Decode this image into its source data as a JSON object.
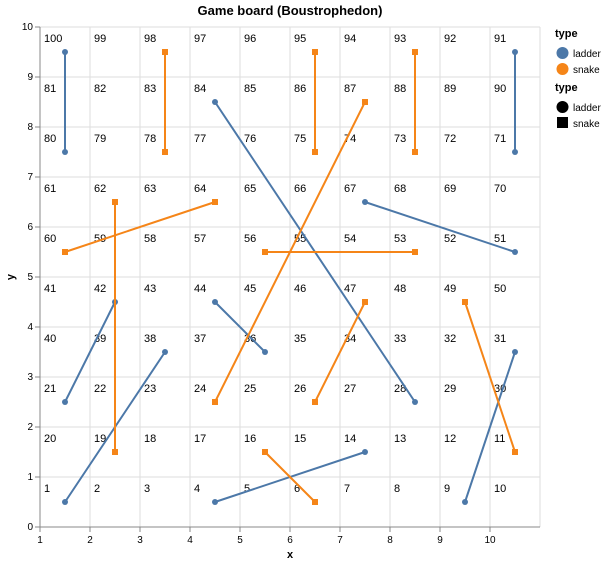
{
  "chart_data": {
    "type": "line",
    "title": "Game board (Boustrophedon)",
    "xlabel": "x",
    "ylabel": "y",
    "xlim": [
      1,
      11
    ],
    "ylim": [
      0,
      10
    ],
    "x_ticks": [
      1,
      2,
      3,
      4,
      5,
      6,
      7,
      8,
      9,
      10
    ],
    "y_ticks": [
      0,
      1,
      2,
      3,
      4,
      5,
      6,
      7,
      8,
      9,
      10
    ],
    "grid": true,
    "colors": {
      "ladder": "#4c78a8",
      "snake": "#f58518",
      "grid": "#dddddd",
      "axis": "#888888"
    },
    "cells": [
      {
        "n": "1",
        "x": 1,
        "y": 0
      },
      {
        "n": "2",
        "x": 2,
        "y": 0
      },
      {
        "n": "3",
        "x": 3,
        "y": 0
      },
      {
        "n": "4",
        "x": 4,
        "y": 0
      },
      {
        "n": "5",
        "x": 5,
        "y": 0
      },
      {
        "n": "6",
        "x": 6,
        "y": 0
      },
      {
        "n": "7",
        "x": 7,
        "y": 0
      },
      {
        "n": "8",
        "x": 8,
        "y": 0
      },
      {
        "n": "9",
        "x": 9,
        "y": 0
      },
      {
        "n": "10",
        "x": 10,
        "y": 0
      },
      {
        "n": "20",
        "x": 1,
        "y": 1
      },
      {
        "n": "19",
        "x": 2,
        "y": 1
      },
      {
        "n": "18",
        "x": 3,
        "y": 1
      },
      {
        "n": "17",
        "x": 4,
        "y": 1
      },
      {
        "n": "16",
        "x": 5,
        "y": 1
      },
      {
        "n": "15",
        "x": 6,
        "y": 1
      },
      {
        "n": "14",
        "x": 7,
        "y": 1
      },
      {
        "n": "13",
        "x": 8,
        "y": 1
      },
      {
        "n": "12",
        "x": 9,
        "y": 1
      },
      {
        "n": "11",
        "x": 10,
        "y": 1
      },
      {
        "n": "21",
        "x": 1,
        "y": 2
      },
      {
        "n": "22",
        "x": 2,
        "y": 2
      },
      {
        "n": "23",
        "x": 3,
        "y": 2
      },
      {
        "n": "24",
        "x": 4,
        "y": 2
      },
      {
        "n": "25",
        "x": 5,
        "y": 2
      },
      {
        "n": "26",
        "x": 6,
        "y": 2
      },
      {
        "n": "27",
        "x": 7,
        "y": 2
      },
      {
        "n": "28",
        "x": 8,
        "y": 2
      },
      {
        "n": "29",
        "x": 9,
        "y": 2
      },
      {
        "n": "30",
        "x": 10,
        "y": 2
      },
      {
        "n": "40",
        "x": 1,
        "y": 3
      },
      {
        "n": "39",
        "x": 2,
        "y": 3
      },
      {
        "n": "38",
        "x": 3,
        "y": 3
      },
      {
        "n": "37",
        "x": 4,
        "y": 3
      },
      {
        "n": "36",
        "x": 5,
        "y": 3
      },
      {
        "n": "35",
        "x": 6,
        "y": 3
      },
      {
        "n": "34",
        "x": 7,
        "y": 3
      },
      {
        "n": "33",
        "x": 8,
        "y": 3
      },
      {
        "n": "32",
        "x": 9,
        "y": 3
      },
      {
        "n": "31",
        "x": 10,
        "y": 3
      },
      {
        "n": "41",
        "x": 1,
        "y": 4
      },
      {
        "n": "42",
        "x": 2,
        "y": 4
      },
      {
        "n": "43",
        "x": 3,
        "y": 4
      },
      {
        "n": "44",
        "x": 4,
        "y": 4
      },
      {
        "n": "45",
        "x": 5,
        "y": 4
      },
      {
        "n": "46",
        "x": 6,
        "y": 4
      },
      {
        "n": "47",
        "x": 7,
        "y": 4
      },
      {
        "n": "48",
        "x": 8,
        "y": 4
      },
      {
        "n": "49",
        "x": 9,
        "y": 4
      },
      {
        "n": "50",
        "x": 10,
        "y": 4
      },
      {
        "n": "60",
        "x": 1,
        "y": 5
      },
      {
        "n": "59",
        "x": 2,
        "y": 5
      },
      {
        "n": "58",
        "x": 3,
        "y": 5
      },
      {
        "n": "57",
        "x": 4,
        "y": 5
      },
      {
        "n": "56",
        "x": 5,
        "y": 5
      },
      {
        "n": "55",
        "x": 6,
        "y": 5
      },
      {
        "n": "54",
        "x": 7,
        "y": 5
      },
      {
        "n": "53",
        "x": 8,
        "y": 5
      },
      {
        "n": "52",
        "x": 9,
        "y": 5
      },
      {
        "n": "51",
        "x": 10,
        "y": 5
      },
      {
        "n": "61",
        "x": 1,
        "y": 6
      },
      {
        "n": "62",
        "x": 2,
        "y": 6
      },
      {
        "n": "63",
        "x": 3,
        "y": 6
      },
      {
        "n": "64",
        "x": 4,
        "y": 6
      },
      {
        "n": "65",
        "x": 5,
        "y": 6
      },
      {
        "n": "66",
        "x": 6,
        "y": 6
      },
      {
        "n": "67",
        "x": 7,
        "y": 6
      },
      {
        "n": "68",
        "x": 8,
        "y": 6
      },
      {
        "n": "69",
        "x": 9,
        "y": 6
      },
      {
        "n": "70",
        "x": 10,
        "y": 6
      },
      {
        "n": "80",
        "x": 1,
        "y": 7
      },
      {
        "n": "79",
        "x": 2,
        "y": 7
      },
      {
        "n": "78",
        "x": 3,
        "y": 7
      },
      {
        "n": "77",
        "x": 4,
        "y": 7
      },
      {
        "n": "76",
        "x": 5,
        "y": 7
      },
      {
        "n": "75",
        "x": 6,
        "y": 7
      },
      {
        "n": "74",
        "x": 7,
        "y": 7
      },
      {
        "n": "73",
        "x": 8,
        "y": 7
      },
      {
        "n": "72",
        "x": 9,
        "y": 7
      },
      {
        "n": "71",
        "x": 10,
        "y": 7
      },
      {
        "n": "81",
        "x": 1,
        "y": 8
      },
      {
        "n": "82",
        "x": 2,
        "y": 8
      },
      {
        "n": "83",
        "x": 3,
        "y": 8
      },
      {
        "n": "84",
        "x": 4,
        "y": 8
      },
      {
        "n": "85",
        "x": 5,
        "y": 8
      },
      {
        "n": "86",
        "x": 6,
        "y": 8
      },
      {
        "n": "87",
        "x": 7,
        "y": 8
      },
      {
        "n": "88",
        "x": 8,
        "y": 8
      },
      {
        "n": "89",
        "x": 9,
        "y": 8
      },
      {
        "n": "90",
        "x": 10,
        "y": 8
      },
      {
        "n": "100",
        "x": 1,
        "y": 9
      },
      {
        "n": "99",
        "x": 2,
        "y": 9
      },
      {
        "n": "98",
        "x": 3,
        "y": 9
      },
      {
        "n": "97",
        "x": 4,
        "y": 9
      },
      {
        "n": "96",
        "x": 5,
        "y": 9
      },
      {
        "n": "95",
        "x": 6,
        "y": 9
      },
      {
        "n": "94",
        "x": 7,
        "y": 9
      },
      {
        "n": "93",
        "x": 8,
        "y": 9
      },
      {
        "n": "92",
        "x": 9,
        "y": 9
      },
      {
        "n": "91",
        "x": 10,
        "y": 9
      }
    ],
    "series": [
      {
        "name": "ladder",
        "from": [
          1.5,
          0.5
        ],
        "to": [
          3.5,
          3.5
        ]
      },
      {
        "name": "ladder",
        "from": [
          4.5,
          0.5
        ],
        "to": [
          7.5,
          1.5
        ]
      },
      {
        "name": "ladder",
        "from": [
          9.5,
          0.5
        ],
        "to": [
          10.5,
          3.5
        ]
      },
      {
        "name": "ladder",
        "from": [
          1.5,
          2.5
        ],
        "to": [
          2.5,
          4.5
        ]
      },
      {
        "name": "ladder",
        "from": [
          5.5,
          3.5
        ],
        "to": [
          4.5,
          4.5
        ]
      },
      {
        "name": "ladder",
        "from": [
          8.5,
          2.5
        ],
        "to": [
          4.5,
          8.5
        ]
      },
      {
        "name": "ladder",
        "from": [
          10.5,
          5.5
        ],
        "to": [
          7.5,
          6.5
        ]
      },
      {
        "name": "ladder",
        "from": [
          1.5,
          7.5
        ],
        "to": [
          1.5,
          9.5
        ]
      },
      {
        "name": "ladder",
        "from": [
          10.5,
          7.5
        ],
        "to": [
          10.5,
          9.5
        ]
      },
      {
        "name": "snake",
        "from": [
          2.5,
          6.5
        ],
        "to": [
          2.5,
          1.5
        ]
      },
      {
        "name": "snake",
        "from": [
          4.5,
          6.5
        ],
        "to": [
          1.5,
          5.5
        ]
      },
      {
        "name": "snake",
        "from": [
          8.5,
          5.5
        ],
        "to": [
          5.5,
          5.5
        ]
      },
      {
        "name": "snake",
        "from": [
          7.5,
          8.5
        ],
        "to": [
          4.5,
          2.5
        ]
      },
      {
        "name": "snake",
        "from": [
          7.5,
          4.5
        ],
        "to": [
          6.5,
          2.5
        ]
      },
      {
        "name": "snake",
        "from": [
          9.5,
          4.5
        ],
        "to": [
          10.5,
          1.5
        ]
      },
      {
        "name": "snake",
        "from": [
          5.5,
          1.5
        ],
        "to": [
          6.5,
          0.5
        ]
      },
      {
        "name": "snake",
        "from": [
          3.5,
          9.5
        ],
        "to": [
          3.5,
          7.5
        ]
      },
      {
        "name": "snake",
        "from": [
          6.5,
          9.5
        ],
        "to": [
          6.5,
          7.5
        ]
      },
      {
        "name": "snake",
        "from": [
          8.5,
          9.5
        ],
        "to": [
          8.5,
          7.5
        ]
      }
    ],
    "legends": [
      {
        "title": "type",
        "entries": [
          {
            "label": "ladder",
            "symbol": "circle",
            "color": "#4c78a8"
          },
          {
            "label": "snake",
            "symbol": "circle",
            "color": "#f58518"
          }
        ]
      },
      {
        "title": "type",
        "entries": [
          {
            "label": "ladder",
            "symbol": "circle",
            "color": "#000000"
          },
          {
            "label": "snake",
            "symbol": "square",
            "color": "#000000"
          }
        ]
      }
    ]
  }
}
